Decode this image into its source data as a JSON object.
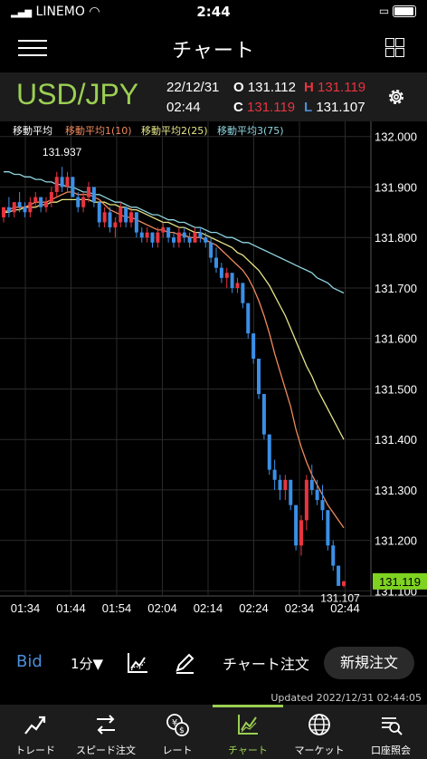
{
  "status_bar": {
    "carrier": "LINEMO",
    "time": "2:44"
  },
  "header": {
    "title": "チャート"
  },
  "quote": {
    "symbol": "USD/JPY",
    "date": "22/12/31",
    "time": "02:44",
    "open_label": "O",
    "open": "131.112",
    "high_label": "H",
    "high": "131.119",
    "close_label": "C",
    "close": "131.119",
    "low_label": "L",
    "low": "131.107"
  },
  "chart_data": {
    "type": "candlestick",
    "legend": [
      {
        "label": "移動平均",
        "color": "#ffffff"
      },
      {
        "label": "移動平均1(10)",
        "color": "#f08a5d"
      },
      {
        "label": "移動平均2(25)",
        "color": "#e6e68a"
      },
      {
        "label": "移動平均3(75)",
        "color": "#8fd6e0"
      }
    ],
    "y_ticks": [
      "132.000",
      "131.900",
      "131.800",
      "131.700",
      "131.600",
      "131.500",
      "131.400",
      "131.300",
      "131.200",
      "131.100"
    ],
    "ylim": [
      131.09,
      132.03
    ],
    "x_ticks": [
      "01:34",
      "01:44",
      "01:54",
      "02:04",
      "02:14",
      "02:24",
      "02:34",
      "02:44"
    ],
    "high_annotation": "131.937",
    "low_annotation": "131.107",
    "current_price": "131.119",
    "up_color": "#e8343f",
    "down_color": "#3b8fe6",
    "candles": [
      [
        131.84,
        131.86,
        131.83,
        131.86
      ],
      [
        131.86,
        131.88,
        131.84,
        131.85
      ],
      [
        131.85,
        131.87,
        131.84,
        131.87
      ],
      [
        131.87,
        131.89,
        131.85,
        131.86
      ],
      [
        131.86,
        131.87,
        131.84,
        131.85
      ],
      [
        131.85,
        131.88,
        131.84,
        131.87
      ],
      [
        131.87,
        131.89,
        131.86,
        131.88
      ],
      [
        131.88,
        131.88,
        131.85,
        131.86
      ],
      [
        131.86,
        131.88,
        131.85,
        131.87
      ],
      [
        131.87,
        131.9,
        131.86,
        131.89
      ],
      [
        131.89,
        131.93,
        131.88,
        131.92
      ],
      [
        131.92,
        131.94,
        131.89,
        131.9
      ],
      [
        131.9,
        131.93,
        131.89,
        131.92
      ],
      [
        131.92,
        131.92,
        131.88,
        131.88
      ],
      [
        131.88,
        131.89,
        131.85,
        131.86
      ],
      [
        131.86,
        131.89,
        131.85,
        131.88
      ],
      [
        131.88,
        131.91,
        131.87,
        131.9
      ],
      [
        131.9,
        131.9,
        131.86,
        131.87
      ],
      [
        131.87,
        131.87,
        131.82,
        131.83
      ],
      [
        131.83,
        131.86,
        131.82,
        131.85
      ],
      [
        131.85,
        131.86,
        131.81,
        131.82
      ],
      [
        131.82,
        131.84,
        131.8,
        131.83
      ],
      [
        131.83,
        131.87,
        131.82,
        131.86
      ],
      [
        131.86,
        131.86,
        131.82,
        131.83
      ],
      [
        131.83,
        131.86,
        131.82,
        131.85
      ],
      [
        131.85,
        131.85,
        131.8,
        131.81
      ],
      [
        131.81,
        131.82,
        131.79,
        131.8
      ],
      [
        131.8,
        131.82,
        131.79,
        131.81
      ],
      [
        131.81,
        131.81,
        131.78,
        131.79
      ],
      [
        131.79,
        131.82,
        131.78,
        131.81
      ],
      [
        131.81,
        131.83,
        131.8,
        131.82
      ],
      [
        131.82,
        131.82,
        131.79,
        131.8
      ],
      [
        131.8,
        131.81,
        131.78,
        131.79
      ],
      [
        131.79,
        131.82,
        131.78,
        131.81
      ],
      [
        131.81,
        131.82,
        131.79,
        131.8
      ],
      [
        131.8,
        131.81,
        131.78,
        131.79
      ],
      [
        131.79,
        131.82,
        131.79,
        131.81
      ],
      [
        131.81,
        131.82,
        131.79,
        131.8
      ],
      [
        131.8,
        131.81,
        131.78,
        131.79
      ],
      [
        131.79,
        131.8,
        131.75,
        131.76
      ],
      [
        131.76,
        131.78,
        131.73,
        131.74
      ],
      [
        131.74,
        131.75,
        131.71,
        131.72
      ],
      [
        131.72,
        131.74,
        131.7,
        131.73
      ],
      [
        131.73,
        131.73,
        131.69,
        131.7
      ],
      [
        131.7,
        131.72,
        131.69,
        131.71
      ],
      [
        131.71,
        131.71,
        131.66,
        131.67
      ],
      [
        131.67,
        131.67,
        131.6,
        131.61
      ],
      [
        131.61,
        131.61,
        131.55,
        131.56
      ],
      [
        131.56,
        131.56,
        131.48,
        131.49
      ],
      [
        131.49,
        131.49,
        131.4,
        131.41
      ],
      [
        131.41,
        131.41,
        131.33,
        131.34
      ],
      [
        131.34,
        131.36,
        131.3,
        131.32
      ],
      [
        131.32,
        131.33,
        131.28,
        131.3
      ],
      [
        131.3,
        131.33,
        131.28,
        131.32
      ],
      [
        131.32,
        131.32,
        131.26,
        131.27
      ],
      [
        131.27,
        131.27,
        131.18,
        131.19
      ],
      [
        131.19,
        131.25,
        131.17,
        131.24
      ],
      [
        131.24,
        131.33,
        131.22,
        131.32
      ],
      [
        131.32,
        131.35,
        131.29,
        131.3
      ],
      [
        131.3,
        131.32,
        131.27,
        131.28
      ],
      [
        131.28,
        131.31,
        131.24,
        131.26
      ],
      [
        131.26,
        131.26,
        131.18,
        131.19
      ],
      [
        131.19,
        131.2,
        131.14,
        131.15
      ],
      [
        131.15,
        131.15,
        131.11,
        131.11
      ],
      [
        131.11,
        131.12,
        131.107,
        131.119
      ]
    ],
    "ma10": [
      131.85,
      131.855,
      131.86,
      131.86,
      131.86,
      131.865,
      131.87,
      131.87,
      131.87,
      131.875,
      131.88,
      131.885,
      131.89,
      131.89,
      131.885,
      131.885,
      131.885,
      131.88,
      131.875,
      131.865,
      131.855,
      131.85,
      131.845,
      131.84,
      131.84,
      131.835,
      131.83,
      131.825,
      131.82,
      131.815,
      131.815,
      131.81,
      131.81,
      131.805,
      131.805,
      131.8,
      131.8,
      131.8,
      131.795,
      131.79,
      131.785,
      131.775,
      131.765,
      131.755,
      131.745,
      131.735,
      131.72,
      131.7,
      131.675,
      131.645,
      131.61,
      131.57,
      131.535,
      131.5,
      131.465,
      131.42,
      131.385,
      131.355,
      131.33,
      131.31,
      131.29,
      131.27,
      131.255,
      131.24,
      131.225
    ],
    "ma25": [
      131.85,
      131.85,
      131.855,
      131.855,
      131.86,
      131.86,
      131.86,
      131.865,
      131.865,
      131.87,
      131.87,
      131.875,
      131.875,
      131.875,
      131.875,
      131.875,
      131.875,
      131.87,
      131.87,
      131.87,
      131.865,
      131.865,
      131.86,
      131.86,
      131.855,
      131.855,
      131.85,
      131.845,
      131.84,
      131.835,
      131.83,
      131.83,
      131.825,
      131.82,
      131.82,
      131.815,
      131.81,
      131.81,
      131.805,
      131.8,
      131.795,
      131.79,
      131.785,
      131.78,
      131.77,
      131.765,
      131.755,
      131.745,
      131.735,
      131.72,
      131.705,
      131.685,
      131.665,
      131.645,
      131.62,
      131.595,
      131.57,
      131.545,
      131.525,
      131.5,
      131.48,
      131.46,
      131.44,
      131.42,
      131.4
    ],
    "ma75": [
      131.93,
      131.93,
      131.925,
      131.925,
      131.92,
      131.92,
      131.915,
      131.915,
      131.91,
      131.91,
      131.905,
      131.905,
      131.9,
      131.9,
      131.895,
      131.89,
      131.89,
      131.885,
      131.885,
      131.88,
      131.875,
      131.87,
      131.87,
      131.865,
      131.86,
      131.86,
      131.855,
      131.85,
      131.845,
      131.845,
      131.84,
      131.835,
      131.835,
      131.83,
      131.83,
      131.825,
      131.82,
      131.82,
      131.815,
      131.81,
      131.81,
      131.805,
      131.8,
      131.8,
      131.795,
      131.79,
      131.79,
      131.785,
      131.78,
      131.775,
      131.77,
      131.765,
      131.76,
      131.755,
      131.75,
      131.745,
      131.74,
      131.735,
      131.73,
      131.72,
      131.715,
      131.71,
      131.7,
      131.695,
      131.69
    ]
  },
  "toolbar": {
    "price_type": "Bid",
    "period": "1分▼",
    "chart_order": "チャート注文",
    "new_order": "新規注文"
  },
  "updated": "Updated  2022/12/31  02:44:05",
  "tabs": [
    {
      "label": "トレード",
      "icon": "trend-icon"
    },
    {
      "label": "スピード注文",
      "icon": "speed-icon"
    },
    {
      "label": "レート",
      "icon": "rate-icon"
    },
    {
      "label": "チャート",
      "icon": "chart-icon",
      "active": true
    },
    {
      "label": "マーケット",
      "icon": "globe-icon"
    },
    {
      "label": "口座照会",
      "icon": "account-icon"
    }
  ]
}
